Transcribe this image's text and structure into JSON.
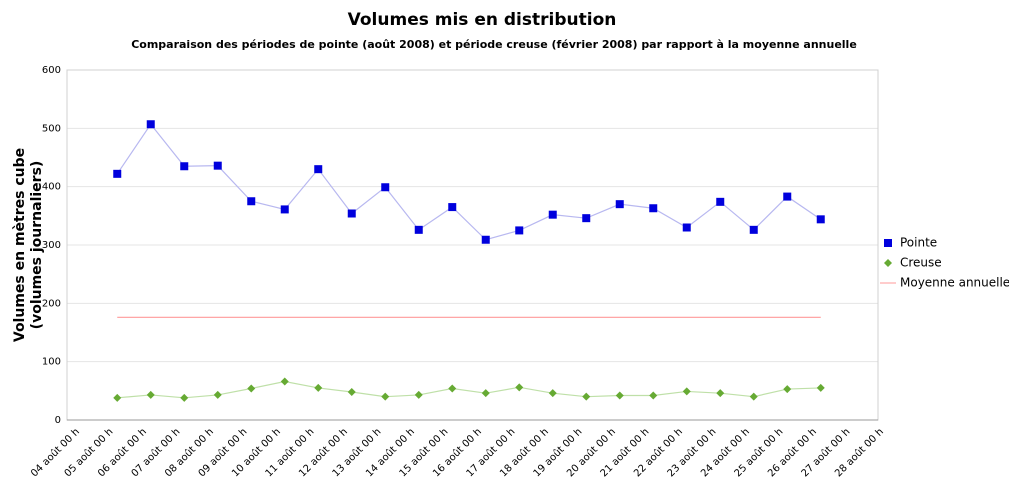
{
  "chart_data": {
    "type": "line",
    "title": "Volumes mis en distribution",
    "subtitle": "Comparaison des périodes de pointe (août 2008) et période creuse (février 2008) par rapport à la moyenne annuelle",
    "ylabel": [
      "Volumes en mètres cube",
      "(volumes journaliers)"
    ],
    "categories": [
      "04 août 00 h",
      "05 août 00 h",
      "06 août 00 h",
      "07 août 00 h",
      "08 août 00 h",
      "09 août 00 h",
      "10 août 00 h",
      "11 août 00 h",
      "12 août 00 h",
      "13 août 00 h",
      "14 août 00 h",
      "15 août 00 h",
      "16 août 00 h",
      "17 août 00 h",
      "18 août 00 h",
      "19 août 00 h",
      "20 août 00 h",
      "21 août 00 h",
      "22 août 00 h",
      "23 août 00 h",
      "24 août 00 h",
      "25 août 00 h",
      "26 août 00 h",
      "27 août 00 h",
      "28 août 00 h"
    ],
    "series": [
      {
        "name": "Pointe",
        "color": "#0000dd",
        "marker": "square",
        "line_color": "#b8b8f0",
        "values": [
          null,
          422,
          507,
          435,
          436,
          375,
          361,
          430,
          354,
          399,
          326,
          365,
          309,
          325,
          352,
          346,
          370,
          363,
          330,
          374,
          326,
          383,
          344,
          null,
          null
        ]
      },
      {
        "name": "Creuse",
        "color": "#66aa33",
        "marker": "diamond",
        "line_color": "#bfe0a8",
        "values": [
          null,
          38,
          43,
          38,
          43,
          54,
          66,
          55,
          48,
          40,
          43,
          54,
          46,
          56,
          46,
          40,
          42,
          42,
          49,
          46,
          40,
          53,
          55,
          null,
          null
        ]
      },
      {
        "name": "Moyenne annuelle",
        "color": "#ff9999",
        "marker": "none",
        "line_color": "#ff9999",
        "values": [
          null,
          176,
          176,
          176,
          176,
          176,
          176,
          176,
          176,
          176,
          176,
          176,
          176,
          176,
          176,
          176,
          176,
          176,
          176,
          176,
          176,
          176,
          176,
          null,
          null
        ]
      }
    ],
    "ylim": [
      0,
      600
    ],
    "yticks": [
      0,
      100,
      200,
      300,
      400,
      500,
      600
    ],
    "grid": true,
    "legend": "right"
  }
}
